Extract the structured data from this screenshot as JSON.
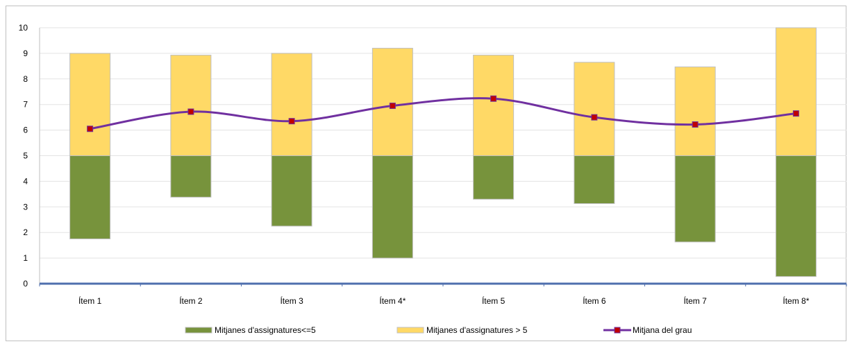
{
  "chart_data": {
    "type": "bar",
    "categories": [
      "Ítem 1",
      "Ítem 2",
      "Ítem 3",
      "Ítem 4*",
      "Ítem 5",
      "Ítem 6",
      "Ítem 7",
      "Ítem 8*"
    ],
    "ylim": [
      0,
      10
    ],
    "yticks": [
      "0",
      "1",
      "2",
      "3",
      "4",
      "5",
      "6",
      "7",
      "8",
      "9",
      "10"
    ],
    "grid": true,
    "legend_position": "bottom",
    "series": [
      {
        "name": "Mitjanes d'assignatures<=5",
        "kind": "floating-bar",
        "color": "#77933c",
        "low": [
          1.75,
          3.38,
          2.25,
          1.0,
          3.3,
          3.13,
          1.63,
          0.28
        ],
        "high": [
          5,
          5,
          5,
          5,
          5,
          5,
          5,
          5
        ]
      },
      {
        "name": "Mitjanes d'assignatures > 5",
        "kind": "floating-bar",
        "color": "#ffd966",
        "low": [
          5,
          5,
          5,
          5,
          5,
          5,
          5,
          5
        ],
        "high": [
          9.0,
          8.93,
          9.0,
          9.2,
          8.93,
          8.65,
          8.47,
          10.0
        ]
      },
      {
        "name": "Mitjana del grau",
        "kind": "line",
        "color": "#7030a0",
        "marker_color": "#c00000",
        "values": [
          6.05,
          6.72,
          6.35,
          6.95,
          7.23,
          6.5,
          6.22,
          6.65
        ]
      }
    ]
  }
}
